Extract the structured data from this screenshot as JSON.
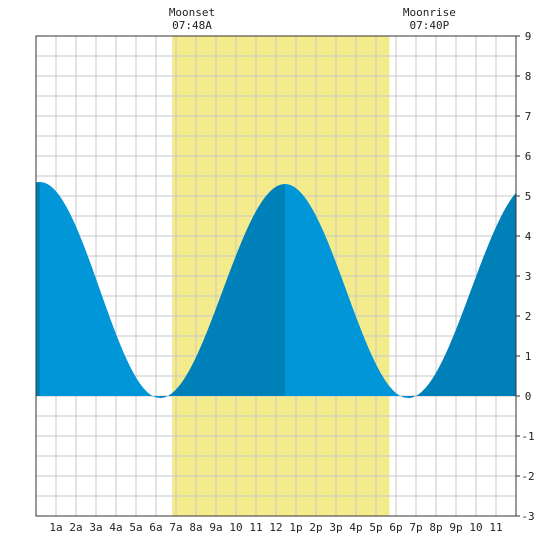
{
  "chart_data": {
    "type": "area",
    "title": "",
    "xlabel": "",
    "ylabel": "",
    "xlim": [
      0,
      24
    ],
    "ylim": [
      -3,
      9
    ],
    "y_ticks": [
      -3,
      -2,
      -1,
      0,
      1,
      2,
      3,
      4,
      5,
      6,
      7,
      8,
      9
    ],
    "x_tick_labels": [
      "1a",
      "2a",
      "3a",
      "4a",
      "5a",
      "6a",
      "7a",
      "8a",
      "9a",
      "10",
      "11",
      "12",
      "1p",
      "2p",
      "3p",
      "4p",
      "5p",
      "6p",
      "7p",
      "8p",
      "9p",
      "10",
      "11"
    ],
    "grid": true,
    "y_axis_side": "right",
    "tide_extremes": [
      {
        "time_h": 0.2,
        "height": 5.35,
        "kind": "high"
      },
      {
        "time_h": 6.2,
        "height": -0.05,
        "kind": "low"
      },
      {
        "time_h": 12.45,
        "height": 5.3,
        "kind": "high"
      },
      {
        "time_h": 18.6,
        "height": -0.05,
        "kind": "low"
      },
      {
        "time_h": 24.9,
        "height": 5.35,
        "kind": "high"
      }
    ],
    "moon_visible_span": [
      6.8,
      17.67
    ],
    "annotations": [
      {
        "name": "Moonset",
        "time_label": "07:48A",
        "time_h": 7.8
      },
      {
        "name": "Moonrise",
        "time_label": "07:40P",
        "time_h": 19.67
      }
    ],
    "colors": {
      "rising": "#0080b8",
      "falling": "#0096d8",
      "moon_band": "#f4ec8c",
      "grid": "#c8c8c8",
      "axis": "#333333"
    }
  }
}
